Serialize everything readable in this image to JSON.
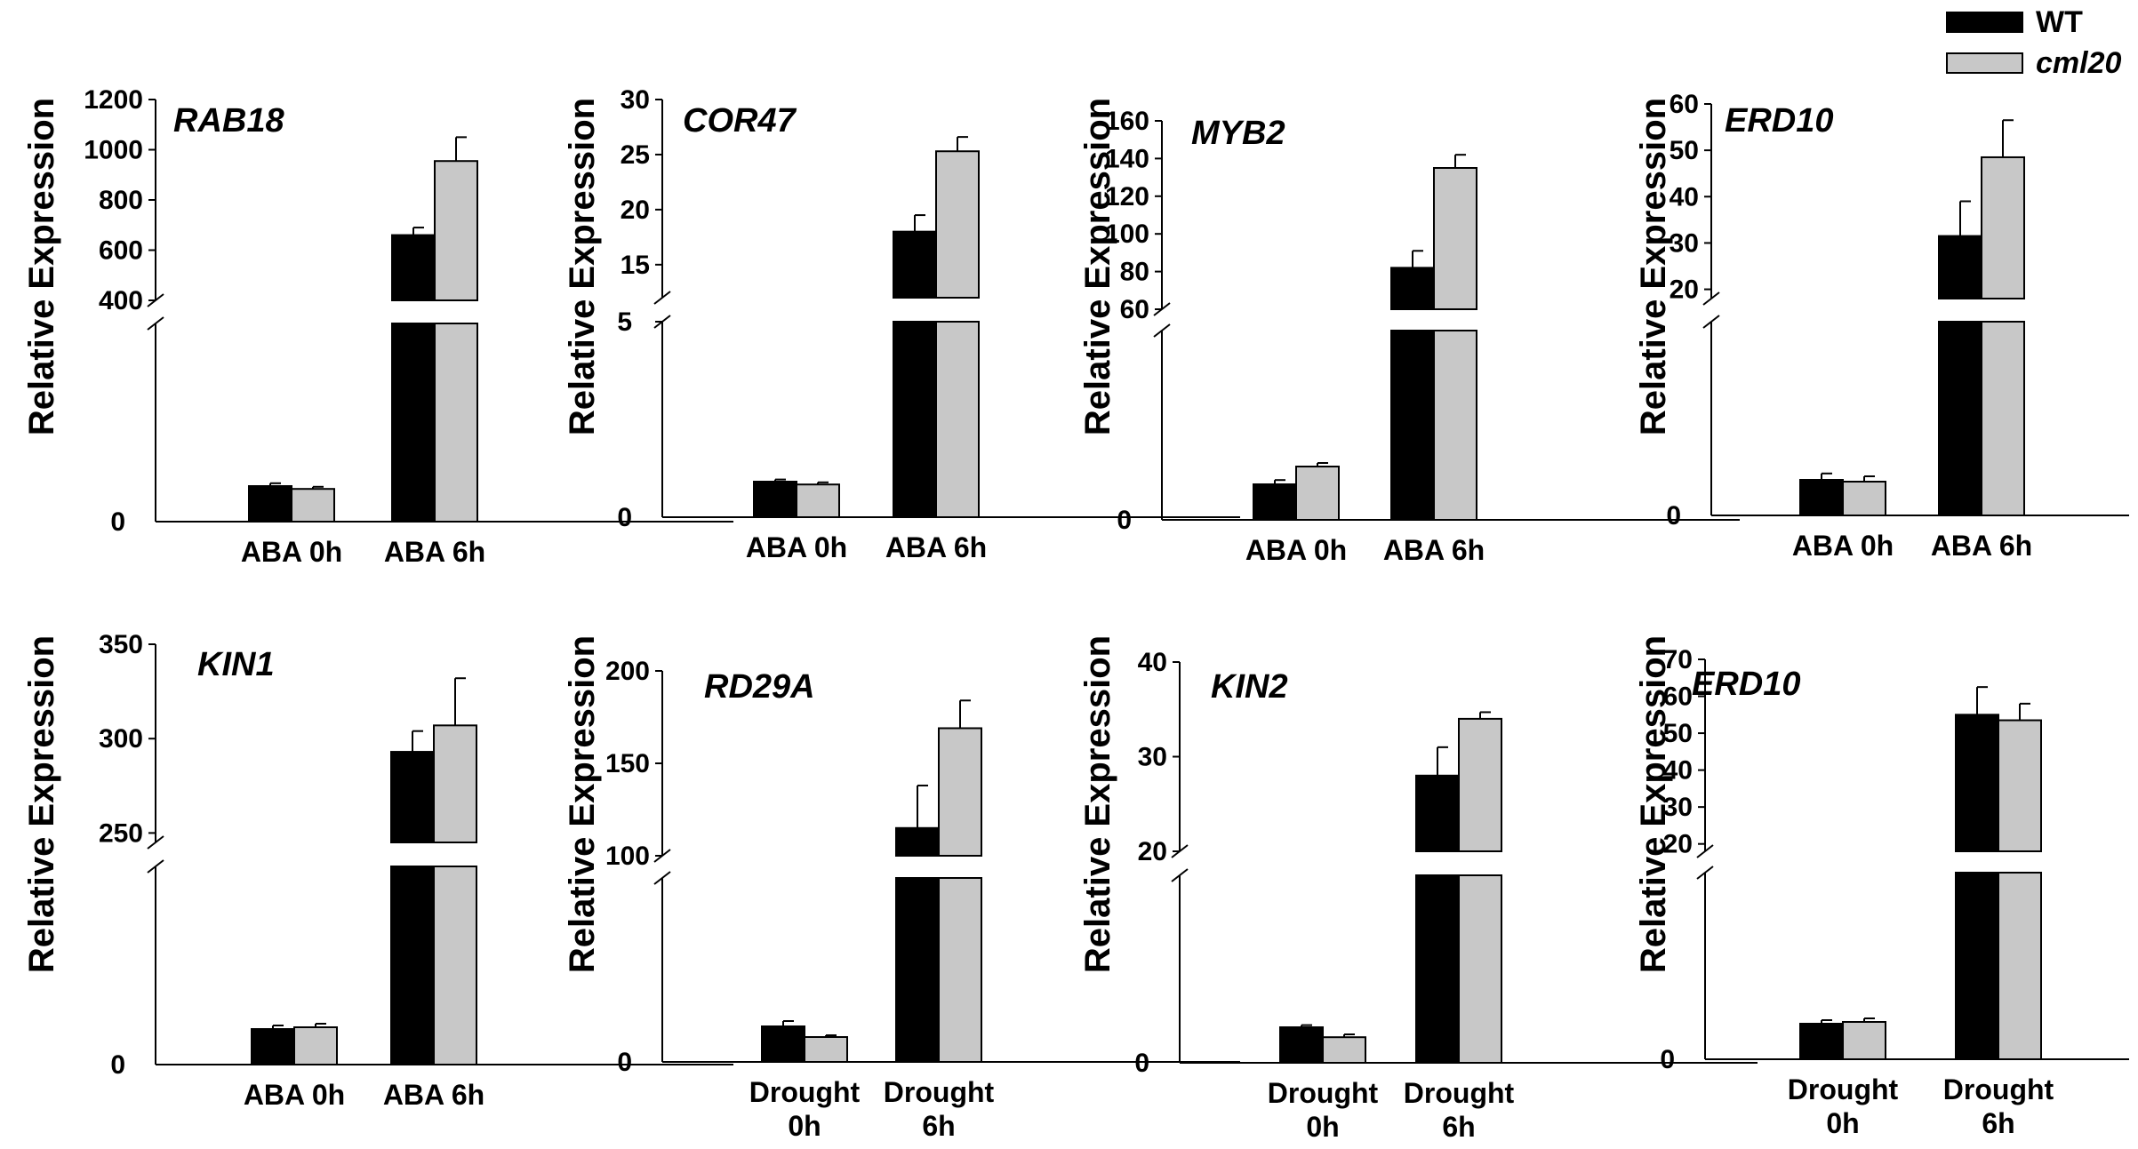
{
  "legend": {
    "position": "top-right",
    "entries": [
      {
        "label": "WT",
        "color": "#000000",
        "italic": false
      },
      {
        "label": "cml20",
        "color": "#c8c8c8",
        "italic": true
      }
    ]
  },
  "colors": {
    "wt": "#000000",
    "cml20": "#c8c8c8",
    "axis": "#000000"
  },
  "chart_data": [
    {
      "type": "bar",
      "title": "RAB18",
      "ylabel": "Relative Expression",
      "categories": [
        "ABA 0h",
        "ABA 6h"
      ],
      "upper": {
        "ylim": [
          400,
          1200
        ],
        "ticks": [
          "400",
          "600",
          "800",
          "1000",
          "1200"
        ]
      },
      "lower": {
        "ticks": [
          "0"
        ]
      },
      "series": [
        {
          "name": "WT",
          "values": [
            1.0,
            660
          ],
          "errors": [
            0.08,
            30
          ]
        },
        {
          "name": "cml20",
          "values": [
            0.92,
            955
          ],
          "errors": [
            0.06,
            95
          ]
        }
      ]
    },
    {
      "type": "bar",
      "title": "COR47",
      "ylabel": "Relative Expression",
      "categories": [
        "ABA 0h",
        "ABA 6h"
      ],
      "upper": {
        "ylim": [
          12,
          30
        ],
        "ticks": [
          "15",
          "20",
          "25",
          "30"
        ]
      },
      "lower": {
        "ylim": [
          0,
          5
        ],
        "ticks": [
          "0",
          "5"
        ]
      },
      "series": [
        {
          "name": "WT",
          "values": [
            1.0,
            18
          ],
          "errors": [
            0.06,
            1.5
          ]
        },
        {
          "name": "cml20",
          "values": [
            0.92,
            25.3
          ],
          "errors": [
            0.06,
            1.3
          ]
        }
      ]
    },
    {
      "type": "bar",
      "title": "MYB2",
      "ylabel": "Relative Expression",
      "categories": [
        "ABA 0h",
        "ABA 6h"
      ],
      "upper": {
        "ylim": [
          60,
          160
        ],
        "ticks": [
          "60",
          "80",
          "100",
          "120",
          "140",
          "160"
        ]
      },
      "lower": {
        "ticks": [
          "0"
        ]
      },
      "series": [
        {
          "name": "WT",
          "values": [
            1.0,
            82
          ],
          "errors": [
            0.12,
            9
          ]
        },
        {
          "name": "cml20",
          "values": [
            1.5,
            135
          ],
          "errors": [
            0.1,
            7
          ]
        }
      ]
    },
    {
      "type": "bar",
      "title": "ERD10",
      "ylabel": "Relative Expression",
      "categories": [
        "ABA 0h",
        "ABA 6h"
      ],
      "upper": {
        "ylim": [
          18,
          60
        ],
        "ticks": [
          "20",
          "30",
          "40",
          "50",
          "60"
        ]
      },
      "lower": {
        "ticks": [
          "0"
        ]
      },
      "series": [
        {
          "name": "WT",
          "values": [
            1.0,
            31.5
          ],
          "errors": [
            0.18,
            7.5
          ]
        },
        {
          "name": "cml20",
          "values": [
            0.95,
            48.5
          ],
          "errors": [
            0.15,
            8
          ]
        }
      ]
    },
    {
      "type": "bar",
      "title": "KIN1",
      "ylabel": "Relative Expression",
      "categories": [
        "ABA 0h",
        "ABA 6h"
      ],
      "upper": {
        "ylim": [
          245,
          350
        ],
        "ticks": [
          "250",
          "300",
          "350"
        ]
      },
      "lower": {
        "ticks": [
          "0"
        ]
      },
      "series": [
        {
          "name": "WT",
          "values": [
            1.0,
            293
          ],
          "errors": [
            0.1,
            11
          ]
        },
        {
          "name": "cml20",
          "values": [
            1.05,
            307
          ],
          "errors": [
            0.1,
            25
          ]
        }
      ]
    },
    {
      "type": "bar",
      "title": "RD29A",
      "ylabel": "Relative Expression",
      "categories": [
        "Drought\n0h",
        "Drought\n6h"
      ],
      "upper": {
        "ylim": [
          100,
          200
        ],
        "ticks": [
          "100",
          "150",
          "200"
        ]
      },
      "lower": {
        "ticks": [
          "0"
        ]
      },
      "series": [
        {
          "name": "WT",
          "values": [
            1.0,
            115
          ],
          "errors": [
            0.15,
            23
          ]
        },
        {
          "name": "cml20",
          "values": [
            0.7,
            169
          ],
          "errors": [
            0.05,
            15
          ]
        }
      ]
    },
    {
      "type": "bar",
      "title": "KIN2",
      "ylabel": "Relative Expression",
      "categories": [
        "Drought\n0h",
        "Drought\n6h"
      ],
      "upper": {
        "ylim": [
          20,
          40
        ],
        "ticks": [
          "20",
          "30",
          "40"
        ]
      },
      "lower": {
        "ticks": [
          "0"
        ]
      },
      "series": [
        {
          "name": "WT",
          "values": [
            1.0,
            28
          ],
          "errors": [
            0.06,
            3
          ]
        },
        {
          "name": "cml20",
          "values": [
            0.72,
            34
          ],
          "errors": [
            0.08,
            0.7
          ]
        }
      ]
    },
    {
      "type": "bar",
      "title": "ERD10",
      "ylabel": "Relative Expression",
      "categories": [
        "Drought\n0h",
        "Drought\n6h"
      ],
      "upper": {
        "ylim": [
          18,
          70
        ],
        "ticks": [
          "20",
          "30",
          "40",
          "50",
          "60",
          "70"
        ]
      },
      "lower": {
        "ticks": [
          "0"
        ]
      },
      "series": [
        {
          "name": "WT",
          "values": [
            1.0,
            55
          ],
          "errors": [
            0.1,
            7.5
          ]
        },
        {
          "name": "cml20",
          "values": [
            1.05,
            53.5
          ],
          "errors": [
            0.1,
            4.5
          ]
        }
      ]
    }
  ]
}
